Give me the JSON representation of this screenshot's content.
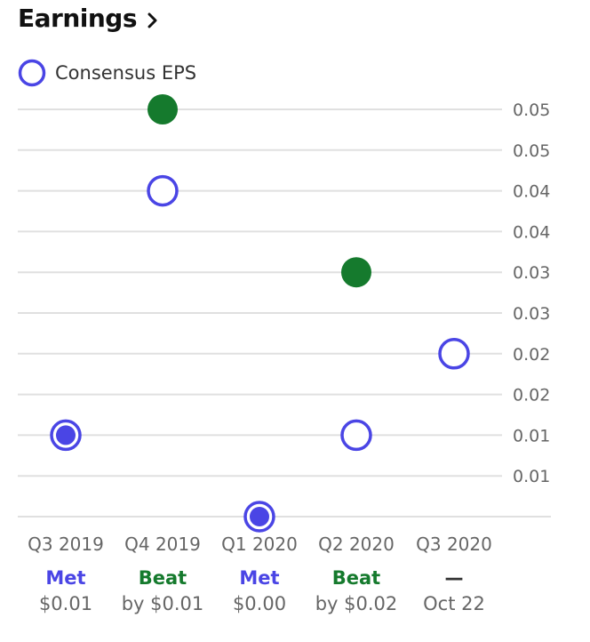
{
  "header": {
    "title": "Earnings"
  },
  "icons": {
    "chevron": "chevron-right-icon"
  },
  "colors": {
    "consensus": "#4a45e5",
    "beat": "#157a2d",
    "met": "#4a45e5",
    "grid": "#e0e0e0",
    "axis_text": "#666666"
  },
  "chart_data": {
    "type": "scatter",
    "legend": [
      "Consensus EPS"
    ],
    "y_ticks": [
      "0.05",
      "0.05",
      "0.04",
      "0.04",
      "0.03",
      "0.03",
      "0.02",
      "0.02",
      "0.01",
      "0.01"
    ],
    "y_tick_values": [
      0.05,
      0.045,
      0.04,
      0.035,
      0.03,
      0.025,
      0.02,
      0.015,
      0.01,
      0.005
    ],
    "ylim": [
      0,
      0.05
    ],
    "categories": [
      "Q3 2019",
      "Q4 2019",
      "Q1 2020",
      "Q2 2020",
      "Q3 2020"
    ],
    "consensus": [
      0.01,
      0.04,
      0.0,
      0.01,
      0.02
    ],
    "actual": [
      0.01,
      0.05,
      0.0,
      0.03,
      null
    ],
    "status": [
      "Met",
      "Beat",
      "Met",
      "Beat",
      "—"
    ],
    "status_type": [
      "met",
      "beat",
      "met",
      "beat",
      "upcoming"
    ],
    "detail": [
      "$0.01",
      "by $0.01",
      "$0.00",
      "by $0.02",
      "Oct 22"
    ]
  }
}
